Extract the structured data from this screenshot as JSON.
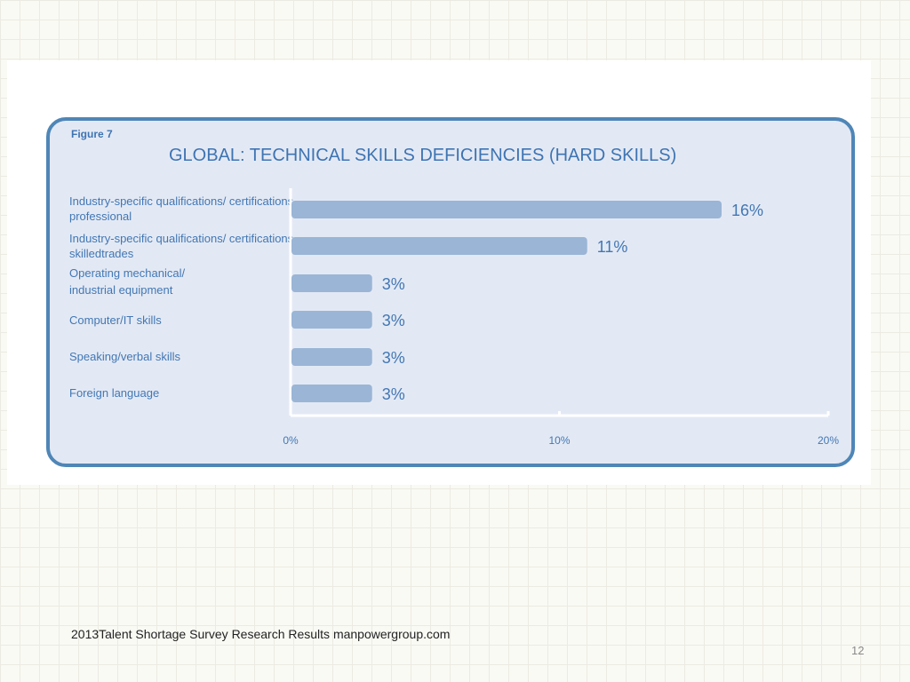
{
  "slide": {
    "footer": "2013Talent Shortage Survey Research Results manpowergroup.com",
    "page_number": "12"
  },
  "figure": {
    "label": "Figure 7"
  },
  "chart_data": {
    "type": "bar",
    "orientation": "horizontal",
    "title": "GLOBAL: TECHNICAL SKILLS DEFICIENCIES (HARD SKILLS)",
    "categories": [
      [
        "Industry-specific qualifications/ certifications—",
        "professional"
      ],
      [
        "Industry-specific qualifications/ certifications—",
        "skilledtrades"
      ],
      [
        "Operating  mechanical/",
        "industrial equipment"
      ],
      [
        "Computer/IT skills"
      ],
      [
        "Speaking/verbal skills"
      ],
      [
        "Foreign language"
      ]
    ],
    "values": [
      16,
      11,
      3,
      3,
      3,
      3
    ],
    "data_labels": [
      "16%",
      "11%",
      "3%",
      "3%",
      "3%",
      "3%"
    ],
    "xlim": [
      0,
      20
    ],
    "x_ticks": [
      0,
      10,
      20
    ],
    "x_tick_labels": [
      "0%",
      "10%",
      "20%"
    ],
    "grid": false,
    "colors": {
      "bar": "#9ab5d6",
      "text": "#4277b4",
      "frame_fill": "#e3e9f4",
      "frame_border": "#4f86b7",
      "axis": "#ffffff"
    }
  }
}
